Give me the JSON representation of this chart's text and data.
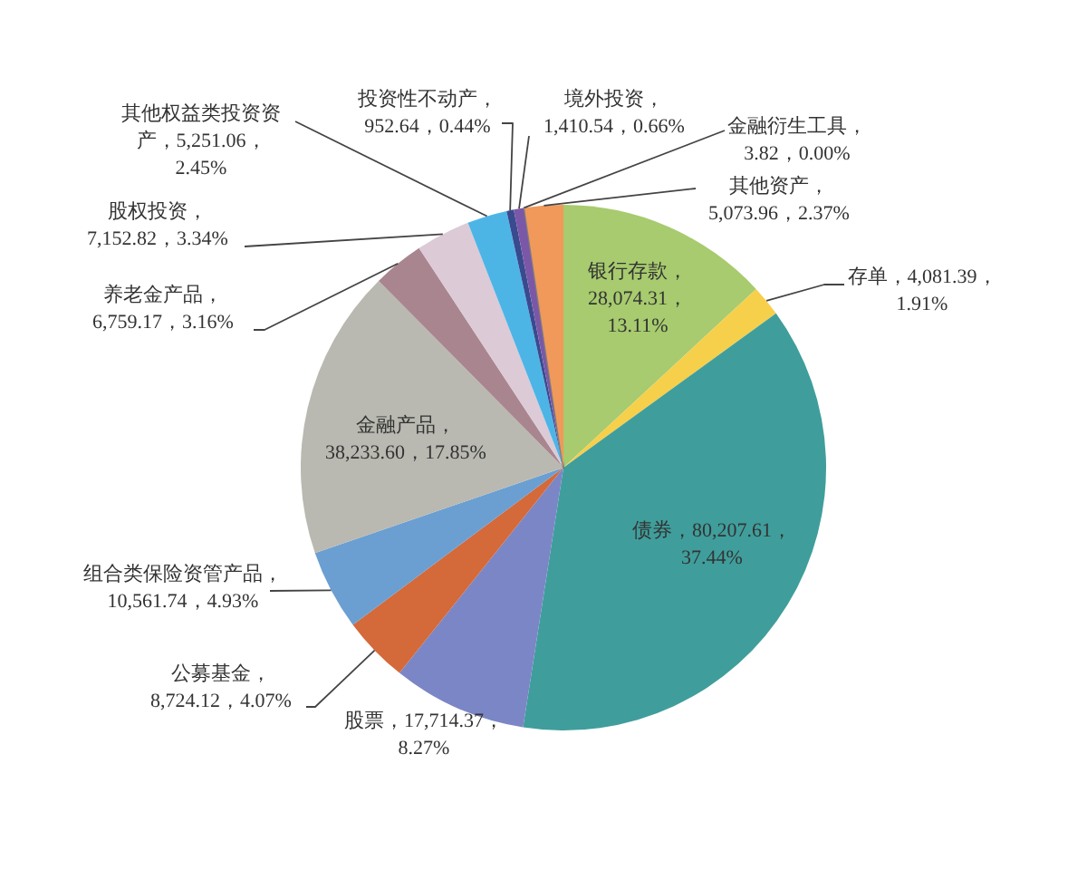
{
  "chart_data": {
    "type": "pie",
    "categories": [
      "银行存款",
      "存单",
      "债券",
      "股票",
      "公募基金",
      "组合类保险资管产品",
      "金融产品",
      "养老金产品",
      "股权投资",
      "其他权益类投资资产",
      "投资性不动产",
      "境外投资",
      "金融衍生工具",
      "其他资产"
    ],
    "values": [
      28074.31,
      4081.39,
      80207.61,
      17714.37,
      8724.12,
      10561.74,
      38233.6,
      6759.17,
      7152.82,
      5251.06,
      952.64,
      1410.54,
      3.82,
      5073.96
    ],
    "value_labels": [
      "，28,074.31，13.11%",
      "，4,081.39，1.91%",
      "，80,207.61，37.44%",
      "，17,714.37，8.27%",
      "，8,724.12，4.07%",
      "，10,561.74，4.93%",
      "，38,233.60，17.85%",
      "，6,759.17，3.16%",
      "，7,152.82，3.34%",
      "，5,251.06，2.45%",
      "，952.64，0.44%",
      "，1,410.54，0.66%",
      "，3.82，0.00%",
      "，5,073.96，2.37%"
    ],
    "colors": [
      "#a7cb6e",
      "#f6cf4b",
      "#3f9e9b",
      "#7b86c6",
      "#d4693a",
      "#6b9fd2",
      "#b9b9b1",
      "#a9868f",
      "#dccad6",
      "#4db5e6",
      "#3a4a8e",
      "#7b57a7",
      "#7f7f7f",
      "#f0995a"
    ]
  }
}
